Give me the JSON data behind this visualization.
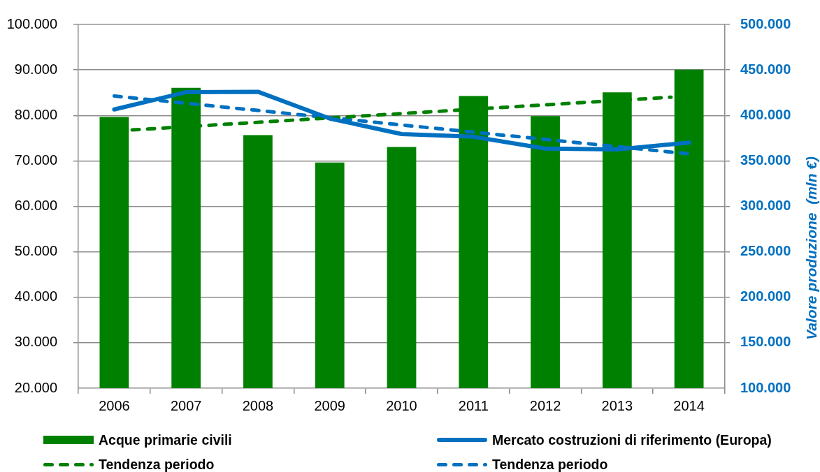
{
  "chart_data": {
    "type": "bar",
    "x": [
      2006,
      2007,
      2008,
      2009,
      2010,
      2011,
      2012,
      2013,
      2014
    ],
    "series": [
      {
        "name": "Acque primarie civili",
        "color": "#008000",
        "values": [
          79600,
          86000,
          75600,
          69600,
          73000,
          84200,
          79800,
          85000,
          90000
        ]
      },
      {
        "name": "Mercato costruzioni di riferimento (Europa)",
        "type": "line",
        "axis": "y2",
        "color": "#0070c0",
        "values": [
          406500,
          425500,
          426000,
          396500,
          379500,
          376500,
          363500,
          362500,
          370000
        ]
      },
      {
        "name": "Tendenza periodo",
        "type": "line",
        "line_style": "dashed",
        "color": "#008000",
        "x": [
          2006.25,
          2013.75
        ],
        "values": [
          76800,
          84000
        ]
      },
      {
        "name": "Tendenza periodo",
        "type": "line",
        "axis": "y2",
        "line_style": "dashed",
        "color": "#0070c0",
        "x": [
          2006,
          2014
        ],
        "values": [
          421300,
          357700
        ]
      }
    ],
    "y2label": "Valore produzione  (mln €)",
    "xlim": [
      2005.5,
      2014.5
    ],
    "xticks": [
      {
        "value": 2005.5,
        "label": null
      },
      2006,
      {
        "value": 2006.5,
        "label": null
      },
      2007,
      {
        "value": 2007.5,
        "label": null
      },
      2008,
      {
        "value": 2008.5,
        "label": null
      },
      2009,
      {
        "value": 2009.5,
        "label": null
      },
      2010,
      {
        "value": 2010.5,
        "label": null
      },
      2011,
      {
        "value": 2011.5,
        "label": null
      },
      2012,
      {
        "value": 2012.5,
        "label": null
      },
      2013,
      {
        "value": 2013.5,
        "label": null
      },
      2014,
      {
        "value": 2014.5,
        "label": null
      }
    ],
    "ylim": [
      20000,
      100000
    ],
    "yticks": [
      {
        "value": 20000,
        "label": "20.000"
      },
      {
        "value": 30000,
        "label": "30.000"
      },
      {
        "value": 40000,
        "label": "40.000"
      },
      {
        "value": 50000,
        "label": "50.000"
      },
      {
        "value": 60000,
        "label": "60.000"
      },
      {
        "value": 70000,
        "label": "70.000"
      },
      {
        "value": 80000,
        "label": "80.000"
      },
      {
        "value": 90000,
        "label": "90.000"
      },
      {
        "value": 100000,
        "label": "100.000"
      }
    ],
    "y2lim": [
      100000,
      500000
    ],
    "y2ticks": [
      {
        "value": 100000,
        "label": "100.000"
      },
      {
        "value": 150000,
        "label": "150.000"
      },
      {
        "value": 200000,
        "label": "200.000"
      },
      {
        "value": 250000,
        "label": "250.000"
      },
      {
        "value": 300000,
        "label": "300.000"
      },
      {
        "value": 350000,
        "label": "350.000"
      },
      {
        "value": 400000,
        "label": "400.000"
      },
      {
        "value": 450000,
        "label": "450.000"
      },
      {
        "value": 500000,
        "label": "500.000"
      }
    ],
    "grid": "y",
    "legend": "bottom",
    "marker": "none"
  }
}
